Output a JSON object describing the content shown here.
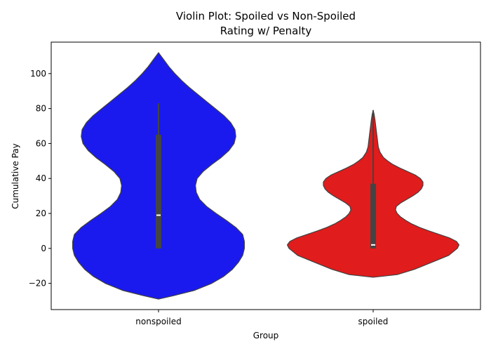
{
  "chart_data": {
    "type": "violin",
    "title_line1": "Violin Plot: Spoiled vs Non-Spoiled",
    "title_line2": "Rating w/ Penalty",
    "xlabel": "Group",
    "ylabel": "Cumulative Pay",
    "ylim": [
      -35,
      118
    ],
    "yticks": [
      -20,
      0,
      20,
      40,
      60,
      80,
      100
    ],
    "categories": [
      "nonspoiled",
      "spoiled"
    ],
    "grid": false,
    "violins": [
      {
        "category": "nonspoiled",
        "color": "#1a1aee",
        "range": [
          -29,
          112
        ],
        "density_profile": [
          [
            -29,
            0.0
          ],
          [
            -27,
            0.18
          ],
          [
            -24,
            0.42
          ],
          [
            -20,
            0.62
          ],
          [
            -16,
            0.76
          ],
          [
            -12,
            0.86
          ],
          [
            -8,
            0.93
          ],
          [
            -4,
            0.98
          ],
          [
            0,
            1.0
          ],
          [
            4,
            1.0
          ],
          [
            8,
            0.98
          ],
          [
            12,
            0.9
          ],
          [
            16,
            0.79
          ],
          [
            20,
            0.67
          ],
          [
            24,
            0.56
          ],
          [
            28,
            0.48
          ],
          [
            32,
            0.44
          ],
          [
            36,
            0.43
          ],
          [
            40,
            0.45
          ],
          [
            44,
            0.52
          ],
          [
            48,
            0.62
          ],
          [
            52,
            0.73
          ],
          [
            56,
            0.82
          ],
          [
            60,
            0.88
          ],
          [
            64,
            0.9
          ],
          [
            68,
            0.89
          ],
          [
            72,
            0.84
          ],
          [
            76,
            0.76
          ],
          [
            80,
            0.66
          ],
          [
            84,
            0.56
          ],
          [
            88,
            0.46
          ],
          [
            92,
            0.36
          ],
          [
            96,
            0.27
          ],
          [
            100,
            0.19
          ],
          [
            104,
            0.12
          ],
          [
            108,
            0.06
          ],
          [
            110,
            0.03
          ],
          [
            112,
            0.0
          ]
        ],
        "box": {
          "q1": 0,
          "median": 19,
          "q3": 65,
          "whisker_low": 0,
          "whisker_high": 83
        }
      },
      {
        "category": "spoiled",
        "color": "#e01c1c",
        "range": [
          -16.5,
          79
        ],
        "density_profile": [
          [
            -16.5,
            0.0
          ],
          [
            -15,
            0.28
          ],
          [
            -12,
            0.48
          ],
          [
            -8,
            0.68
          ],
          [
            -4,
            0.88
          ],
          [
            0,
            0.98
          ],
          [
            2,
            1.0
          ],
          [
            4,
            0.97
          ],
          [
            6,
            0.89
          ],
          [
            8,
            0.77
          ],
          [
            10,
            0.65
          ],
          [
            12,
            0.54
          ],
          [
            14,
            0.45
          ],
          [
            16,
            0.38
          ],
          [
            18,
            0.32
          ],
          [
            20,
            0.28
          ],
          [
            22,
            0.26
          ],
          [
            24,
            0.27
          ],
          [
            26,
            0.32
          ],
          [
            28,
            0.39
          ],
          [
            30,
            0.46
          ],
          [
            32,
            0.52
          ],
          [
            34,
            0.56
          ],
          [
            36,
            0.58
          ],
          [
            38,
            0.58
          ],
          [
            40,
            0.55
          ],
          [
            42,
            0.49
          ],
          [
            44,
            0.4
          ],
          [
            46,
            0.31
          ],
          [
            48,
            0.23
          ],
          [
            50,
            0.17
          ],
          [
            52,
            0.12
          ],
          [
            55,
            0.08
          ],
          [
            58,
            0.06
          ],
          [
            62,
            0.05
          ],
          [
            66,
            0.04
          ],
          [
            70,
            0.03
          ],
          [
            74,
            0.02
          ],
          [
            77,
            0.01
          ],
          [
            79,
            0.0
          ]
        ],
        "box": {
          "q1": 0,
          "median": 2,
          "q3": 37,
          "whisker_low": 0,
          "whisker_high": 79
        }
      }
    ]
  }
}
